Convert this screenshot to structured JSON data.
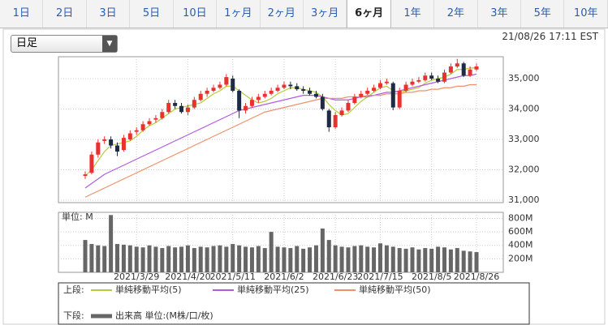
{
  "tabs": [
    "1日",
    "2日",
    "3日",
    "5日",
    "10日",
    "1ヶ月",
    "2ヶ月",
    "3ヶ月",
    "6ヶ月",
    "1年",
    "2年",
    "3年",
    "5年",
    "10年"
  ],
  "active_tab": 8,
  "dropdown": "日足",
  "timestamp": "21/08/26 17:11 EST",
  "legend": {
    "upper": "上段:",
    "lower": "下段:"
  },
  "chart_data": [
    {
      "type": "candlestick",
      "up_color": "#e8322e",
      "down_color": "#1f2a44",
      "grid": true,
      "ylim": [
        30920,
        35720
      ],
      "yticks": [
        {
          "value": 31000,
          "label": "31,000"
        },
        {
          "value": 32000,
          "label": "32,000"
        },
        {
          "value": 33000,
          "label": "33,000"
        },
        {
          "value": 34000,
          "label": "34,000"
        },
        {
          "value": 35000,
          "label": "35,000"
        }
      ],
      "open": [
        31800,
        31900,
        32500,
        32950,
        33000,
        32800,
        32650,
        33000,
        33250,
        33300,
        33500,
        33650,
        33700,
        33900,
        34200,
        34100,
        33900,
        34050,
        34300,
        34500,
        34600,
        34700,
        34800,
        35000,
        34600,
        33950,
        34100,
        34300,
        34400,
        34500,
        34600,
        34700,
        34800,
        34750,
        34650,
        34600,
        34500,
        34400,
        33950,
        33400,
        33800,
        33950,
        34200,
        34400,
        34500,
        34600,
        34700,
        34850,
        34850,
        34050,
        34600,
        34800,
        34900,
        34950,
        35100,
        35000,
        34900,
        35200,
        35400,
        35500,
        35100,
        35300
      ],
      "high": [
        31950,
        32600,
        33000,
        33100,
        33100,
        32900,
        33150,
        33300,
        33400,
        33600,
        33700,
        33800,
        34000,
        34300,
        34300,
        34200,
        34150,
        34400,
        34600,
        34700,
        34800,
        34900,
        35150,
        35100,
        34650,
        34200,
        34400,
        34500,
        34600,
        34700,
        34800,
        34900,
        34900,
        34850,
        34750,
        34700,
        34600,
        34500,
        34000,
        33900,
        34050,
        34300,
        34500,
        34600,
        34700,
        34800,
        34950,
        35000,
        34900,
        34700,
        34900,
        35000,
        35050,
        35200,
        35200,
        35100,
        35300,
        35500,
        35650,
        35550,
        35400,
        35500
      ],
      "low": [
        31700,
        31850,
        32400,
        32850,
        32700,
        32450,
        32600,
        32950,
        33150,
        33250,
        33450,
        33550,
        33650,
        33850,
        34000,
        33850,
        33800,
        34000,
        34250,
        34400,
        34550,
        34650,
        34750,
        34550,
        33700,
        33850,
        34050,
        34200,
        34350,
        34450,
        34550,
        34650,
        34650,
        34600,
        34500,
        34450,
        34350,
        33950,
        33250,
        33350,
        33750,
        33900,
        34150,
        34350,
        34450,
        34550,
        34650,
        34800,
        33960,
        34000,
        34550,
        34750,
        34850,
        34900,
        34950,
        34850,
        34850,
        35150,
        35350,
        35050,
        35050,
        35250
      ],
      "close": [
        31850,
        32500,
        32900,
        33000,
        32800,
        32600,
        33050,
        33200,
        33300,
        33500,
        33600,
        33700,
        33900,
        34200,
        34100,
        33900,
        34050,
        34300,
        34500,
        34600,
        34700,
        34800,
        35050,
        34600,
        33950,
        34100,
        34300,
        34400,
        34500,
        34600,
        34700,
        34800,
        34750,
        34650,
        34600,
        34500,
        34400,
        34000,
        33400,
        33800,
        33950,
        34200,
        34400,
        34500,
        34600,
        34700,
        34850,
        34900,
        34050,
        34600,
        34800,
        34900,
        34950,
        35100,
        35000,
        34900,
        35200,
        35400,
        35500,
        35100,
        35300,
        35400
      ],
      "series": [
        {
          "name": "単純移動平均(5)",
          "color": "#b5cc3c",
          "values": [
            31800,
            32000,
            32300,
            32600,
            32800,
            32850,
            32900,
            32950,
            33100,
            33300,
            33450,
            33550,
            33700,
            33850,
            34000,
            34050,
            34100,
            34150,
            34200,
            34350,
            34500,
            34600,
            34750,
            34750,
            34600,
            34450,
            34300,
            34200,
            34250,
            34350,
            34500,
            34600,
            34700,
            34700,
            34650,
            34600,
            34550,
            34400,
            34150,
            33950,
            33800,
            33850,
            34050,
            34250,
            34400,
            34550,
            34700,
            34750,
            34600,
            34550,
            34600,
            34650,
            34700,
            34850,
            34950,
            35000,
            35050,
            35150,
            35300,
            35300,
            35350,
            35350
          ]
        },
        {
          "name": "単純移動平均(25)",
          "color": "#b05de0",
          "values": [
            31400,
            31550,
            31700,
            31850,
            31950,
            32050,
            32150,
            32250,
            32350,
            32450,
            32550,
            32650,
            32750,
            32850,
            32950,
            33050,
            33150,
            33250,
            33350,
            33450,
            33550,
            33650,
            33750,
            33850,
            33950,
            34000,
            34050,
            34100,
            34150,
            34200,
            34250,
            34300,
            34350,
            34400,
            34450,
            34450,
            34450,
            34400,
            34350,
            34300,
            34300,
            34300,
            34350,
            34400,
            34400,
            34450,
            34500,
            34550,
            34550,
            34600,
            34650,
            34700,
            34750,
            34800,
            34850,
            34900,
            34950,
            35000,
            35050,
            35100,
            35100,
            35150
          ]
        },
        {
          "name": "単純移動平均(50)",
          "color": "#f0906a",
          "values": [
            31100,
            31200,
            31300,
            31400,
            31500,
            31600,
            31700,
            31800,
            31900,
            32000,
            32100,
            32200,
            32300,
            32400,
            32500,
            32600,
            32700,
            32800,
            32900,
            33000,
            33100,
            33200,
            33300,
            33400,
            33500,
            33600,
            33700,
            33800,
            33900,
            33950,
            34000,
            34050,
            34100,
            34150,
            34200,
            34250,
            34300,
            34350,
            34350,
            34350,
            34350,
            34400,
            34400,
            34400,
            34450,
            34450,
            34450,
            34500,
            34500,
            34500,
            34550,
            34550,
            34600,
            34600,
            34650,
            34650,
            34700,
            34700,
            34750,
            34750,
            34800,
            34800
          ]
        }
      ]
    },
    {
      "type": "bar",
      "ylabel": "単位: M",
      "grid": true,
      "ylim": [
        0,
        890
      ],
      "yticks": [
        {
          "value": 200,
          "label": "200M"
        },
        {
          "value": 400,
          "label": "400M"
        },
        {
          "value": 600,
          "label": "600M"
        },
        {
          "value": 800,
          "label": "800M"
        }
      ],
      "categories": [
        null,
        null,
        null,
        null,
        null,
        null,
        null,
        null,
        "2021/3/29",
        null,
        null,
        null,
        null,
        null,
        null,
        null,
        "2021/4/20",
        null,
        null,
        null,
        null,
        null,
        null,
        "2021/5/11",
        null,
        null,
        null,
        null,
        null,
        null,
        null,
        "2021/6/2",
        null,
        null,
        null,
        null,
        null,
        null,
        null,
        "2021/6/23",
        null,
        null,
        null,
        null,
        null,
        null,
        "2021/7/15",
        null,
        null,
        null,
        null,
        null,
        null,
        null,
        "2021/8/5",
        null,
        null,
        null,
        null,
        null,
        null,
        "2021/8/26"
      ],
      "series": [
        {
          "name": "出来高 単位:(M株/口/枚)",
          "color": "#666666",
          "values": [
            480,
            420,
            400,
            390,
            850,
            420,
            410,
            400,
            380,
            370,
            400,
            380,
            360,
            390,
            370,
            380,
            400,
            360,
            380,
            370,
            390,
            400,
            380,
            420,
            400,
            380,
            370,
            390,
            360,
            600,
            380,
            370,
            360,
            390,
            350,
            370,
            400,
            650,
            480,
            400,
            380,
            370,
            390,
            400,
            380,
            370,
            430,
            400,
            380,
            360,
            350,
            370,
            340,
            360,
            350,
            380,
            370,
            340,
            360,
            320,
            310,
            300
          ]
        }
      ]
    }
  ]
}
